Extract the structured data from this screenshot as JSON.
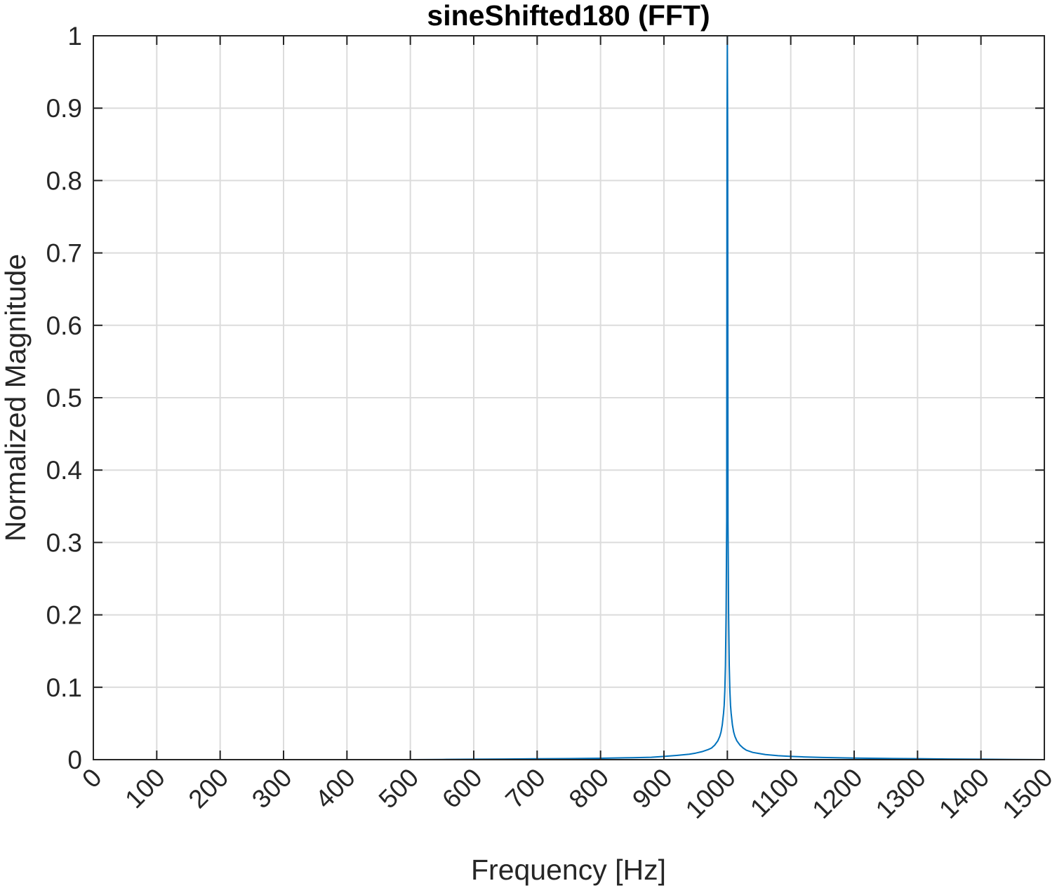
{
  "chart_data": {
    "type": "line",
    "title": "sineShifted180 (FFT)",
    "xlabel": "Frequency [Hz]",
    "ylabel": "Normalized Magnitude",
    "xlim": [
      0,
      1500
    ],
    "ylim": [
      0,
      1
    ],
    "grid": true,
    "x_ticks": [
      0,
      100,
      200,
      300,
      400,
      500,
      600,
      700,
      800,
      900,
      1000,
      1100,
      1200,
      1300,
      1400,
      1500
    ],
    "x_tick_labels": [
      "0",
      "100",
      "200",
      "300",
      "400",
      "500",
      "600",
      "700",
      "800",
      "900",
      "1000",
      "1100",
      "1200",
      "1300",
      "1400",
      "1500"
    ],
    "y_ticks": [
      0,
      0.1,
      0.2,
      0.3,
      0.4,
      0.5,
      0.6,
      0.7,
      0.8,
      0.9,
      1
    ],
    "y_tick_labels": [
      "0",
      "0.1",
      "0.2",
      "0.3",
      "0.4",
      "0.5",
      "0.6",
      "0.7",
      "0.8",
      "0.9",
      "1"
    ],
    "series": [
      {
        "color": "#0072bd",
        "x": [
          0,
          100,
          200,
          300,
          400,
          500,
          550,
          600,
          650,
          700,
          750,
          800,
          850,
          880,
          900,
          920,
          940,
          950,
          960,
          970,
          975,
          980,
          985,
          988,
          990,
          992,
          994,
          995,
          996,
          997,
          998,
          999,
          999.5,
          1000,
          1000.5,
          1001,
          1002,
          1003,
          1004,
          1005,
          1006,
          1008,
          1010,
          1012,
          1015,
          1020,
          1025,
          1030,
          1040,
          1050,
          1060,
          1080,
          1100,
          1120,
          1150,
          1200,
          1250,
          1300,
          1350,
          1400,
          1450,
          1500
        ],
        "y": [
          0,
          0,
          0,
          0,
          0,
          0,
          0.0003,
          0.0006,
          0.0009,
          0.0012,
          0.0015,
          0.002,
          0.0027,
          0.0033,
          0.0045,
          0.0058,
          0.0075,
          0.009,
          0.011,
          0.014,
          0.016,
          0.02,
          0.026,
          0.032,
          0.038,
          0.048,
          0.064,
          0.075,
          0.095,
          0.13,
          0.2,
          0.33,
          0.87,
          1.0,
          0.87,
          0.33,
          0.2,
          0.13,
          0.095,
          0.075,
          0.064,
          0.048,
          0.038,
          0.032,
          0.026,
          0.02,
          0.016,
          0.013,
          0.01,
          0.0085,
          0.007,
          0.0055,
          0.0045,
          0.0038,
          0.003,
          0.0022,
          0.0017,
          0.0013,
          0.0009,
          0.0006,
          0.0003,
          0
        ]
      }
    ]
  }
}
